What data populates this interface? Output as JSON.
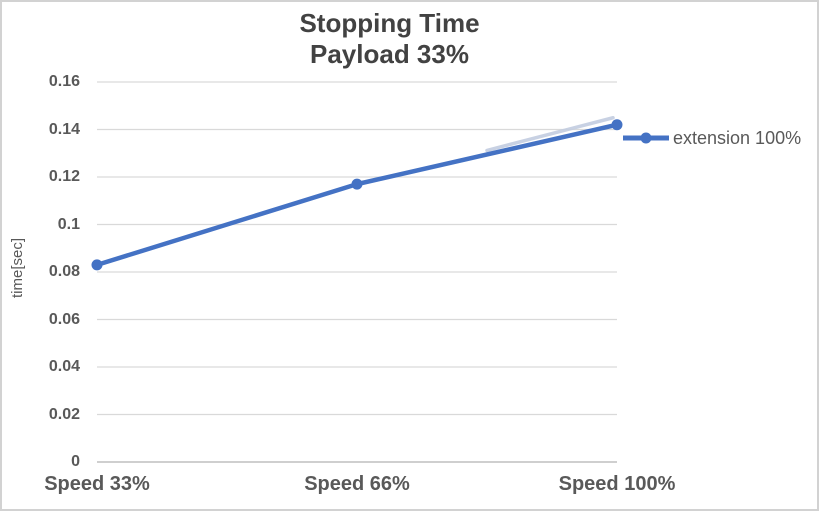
{
  "chart_data": {
    "type": "line",
    "title": "Stopping Time",
    "subtitle": "Payload 33%",
    "ylabel": "time[sec]",
    "xlabel": "",
    "categories": [
      "Speed 33%",
      "Speed 66%",
      "Speed 100%"
    ],
    "series": [
      {
        "name": "extension 100%",
        "values": [
          0.083,
          0.117,
          0.142
        ]
      }
    ],
    "ylim": [
      0,
      0.16
    ],
    "ytick_step": 0.02,
    "yticks": [
      "0",
      "0.02",
      "0.04",
      "0.06",
      "0.08",
      "0.1",
      "0.12",
      "0.14",
      "0.16"
    ],
    "grid": "horizontal",
    "legend_position": "right",
    "colors": {
      "series": "#4472C4",
      "series_shadow": "#c3cde0",
      "gridline": "#d9d9d9",
      "axis_line": "#bfbfbf",
      "tick_text": "#595959",
      "title_text": "#424242",
      "border": "#d2d2d2",
      "background": "#ffffff"
    }
  }
}
